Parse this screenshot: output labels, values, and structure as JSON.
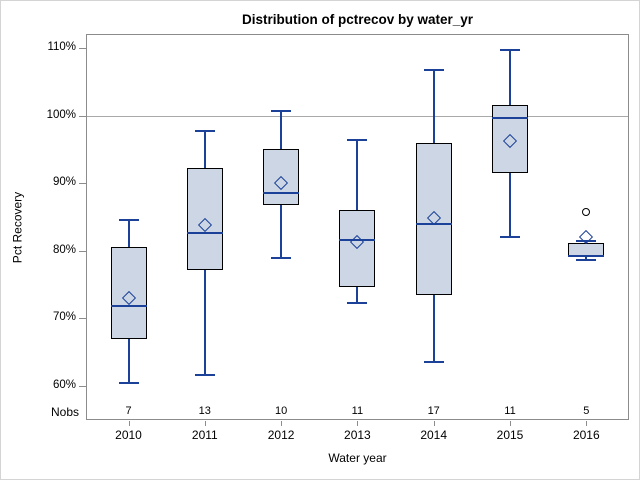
{
  "figure": {
    "title": "Distribution of pctrecov by water_yr"
  },
  "axes": {
    "y_label": "Pct Recovery",
    "x_label": "Water year",
    "nobs_label": "Nobs"
  },
  "chart_data": {
    "type": "boxplot",
    "title": "Distribution of pctrecov by water_yr",
    "xlabel": "Water year",
    "ylabel": "Pct Recovery",
    "categories": [
      "2010",
      "2011",
      "2012",
      "2013",
      "2014",
      "2015",
      "2016"
    ],
    "nobs": [
      7,
      13,
      10,
      11,
      17,
      11,
      5
    ],
    "y_ticks": [
      {
        "value": 110,
        "label": "110%"
      },
      {
        "value": 100,
        "label": "100%"
      },
      {
        "value": 90,
        "label": "90%"
      },
      {
        "value": 80,
        "label": "80%"
      },
      {
        "value": 70,
        "label": "70%"
      },
      {
        "value": 60,
        "label": "60%"
      }
    ],
    "ylim": [
      55,
      112
    ],
    "reference_line": 100,
    "grid": "horizontal reference line at 100% only",
    "legend": "none",
    "series": [
      {
        "category": "2010",
        "n": 7,
        "whisker_low": 60.5,
        "q1": 67.0,
        "median": 71.8,
        "q3": 80.5,
        "whisker_high": 84.5,
        "mean": 73.0,
        "outliers": []
      },
      {
        "category": "2011",
        "n": 13,
        "whisker_low": 61.7,
        "q1": 77.2,
        "median": 82.7,
        "q3": 92.3,
        "whisker_high": 97.7,
        "mean": 83.8,
        "outliers": []
      },
      {
        "category": "2012",
        "n": 10,
        "whisker_low": 79.0,
        "q1": 86.8,
        "median": 88.5,
        "q3": 95.0,
        "whisker_high": 100.7,
        "mean": 90.0,
        "outliers": []
      },
      {
        "category": "2013",
        "n": 11,
        "whisker_low": 72.3,
        "q1": 74.7,
        "median": 81.6,
        "q3": 86.0,
        "whisker_high": 96.4,
        "mean": 81.3,
        "outliers": []
      },
      {
        "category": "2014",
        "n": 17,
        "whisker_low": 63.5,
        "q1": 73.4,
        "median": 83.9,
        "q3": 95.9,
        "whisker_high": 106.8,
        "mean": 84.9,
        "outliers": []
      },
      {
        "category": "2015",
        "n": 11,
        "whisker_low": 82.1,
        "q1": 91.5,
        "median": 99.6,
        "q3": 101.5,
        "whisker_high": 109.7,
        "mean": 96.3,
        "outliers": []
      },
      {
        "category": "2016",
        "n": 5,
        "whisker_low": 78.7,
        "q1": 79.1,
        "median": 79.3,
        "q3": 81.2,
        "whisker_high": 81.5,
        "mean": 82.0,
        "outliers": [
          85.8
        ]
      }
    ]
  },
  "colors": {
    "box_fill": "#cdd6e4",
    "box_border": "#000000",
    "whisker": "#1b4298",
    "median": "#1b4298",
    "mean_marker": "#1b4298",
    "outlier": "#000000",
    "reference_line": "#a9a9a9",
    "frame": "#8c8c8c",
    "outer_border": "#d4d4d4",
    "text": "#000000",
    "background": "#ffffff"
  }
}
